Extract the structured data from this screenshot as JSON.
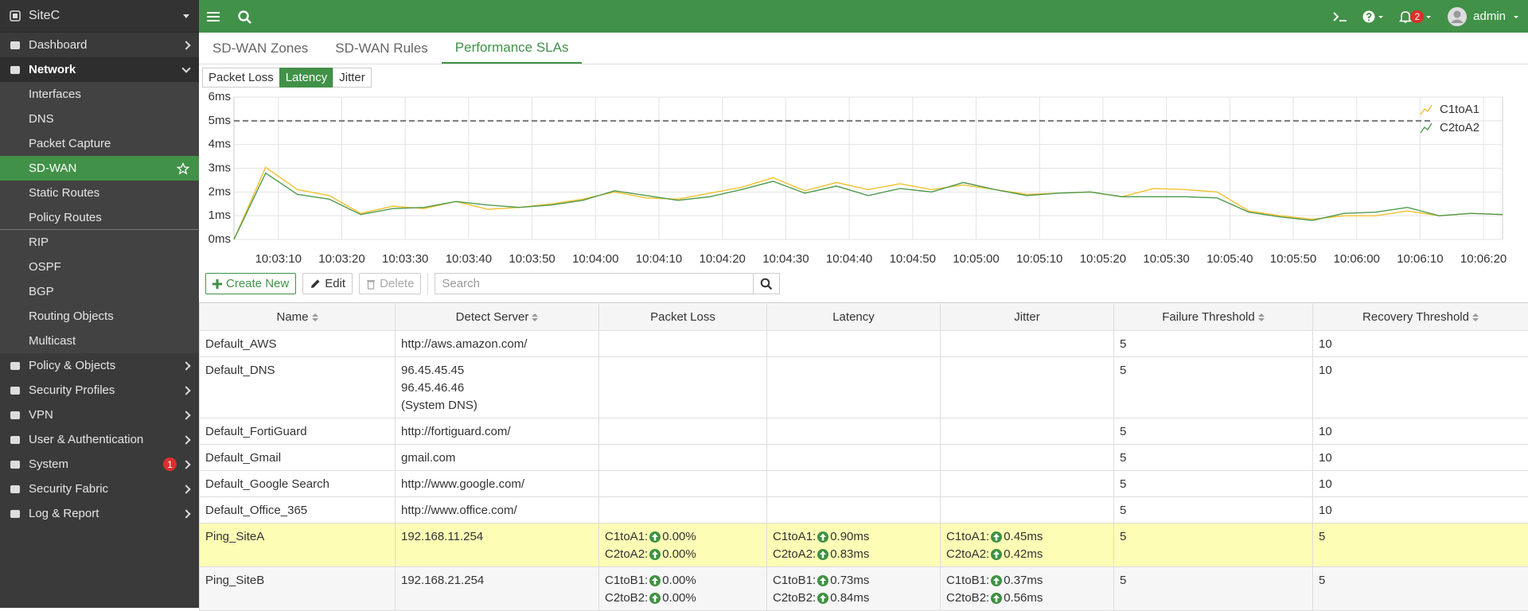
{
  "sidebar": {
    "site": "SiteC",
    "items": [
      {
        "label": "Dashboard",
        "level": 1
      },
      {
        "label": "Network",
        "level": 1,
        "expanded": true
      },
      {
        "label": "Interfaces",
        "level": 2
      },
      {
        "label": "DNS",
        "level": 2
      },
      {
        "label": "Packet Capture",
        "level": 2
      },
      {
        "label": "SD-WAN",
        "level": 2,
        "active": true
      },
      {
        "label": "Static Routes",
        "level": 2
      },
      {
        "label": "Policy Routes",
        "level": 2,
        "separator_after": true
      },
      {
        "label": "RIP",
        "level": 2
      },
      {
        "label": "OSPF",
        "level": 2
      },
      {
        "label": "BGP",
        "level": 2
      },
      {
        "label": "Routing Objects",
        "level": 2
      },
      {
        "label": "Multicast",
        "level": 2
      },
      {
        "label": "Policy & Objects",
        "level": 1
      },
      {
        "label": "Security Profiles",
        "level": 1
      },
      {
        "label": "VPN",
        "level": 1
      },
      {
        "label": "User & Authentication",
        "level": 1
      },
      {
        "label": "System",
        "level": 1,
        "badge": 1
      },
      {
        "label": "Security Fabric",
        "level": 1
      },
      {
        "label": "Log & Report",
        "level": 1
      }
    ]
  },
  "topbar": {
    "notifications": 2,
    "user": "admin"
  },
  "tabs": [
    "SD-WAN Zones",
    "SD-WAN Rules",
    "Performance SLAs"
  ],
  "active_tab": 2,
  "chart_buttons": [
    "Packet Loss",
    "Latency",
    "Jitter"
  ],
  "active_chart_button": 1,
  "chart_data": {
    "type": "line",
    "x": [
      "10:03:03",
      "10:03:08",
      "10:03:13",
      "10:03:18",
      "10:03:23",
      "10:03:28",
      "10:03:33",
      "10:03:38",
      "10:03:43",
      "10:03:48",
      "10:03:53",
      "10:03:58",
      "10:04:03",
      "10:04:08",
      "10:04:13",
      "10:04:18",
      "10:04:23",
      "10:04:28",
      "10:04:33",
      "10:04:38",
      "10:04:43",
      "10:04:48",
      "10:04:53",
      "10:04:58",
      "10:05:03",
      "10:05:08",
      "10:05:13",
      "10:05:18",
      "10:05:23",
      "10:05:28",
      "10:05:33",
      "10:05:38",
      "10:05:43",
      "10:05:48",
      "10:05:53",
      "10:05:58",
      "10:06:03",
      "10:06:08",
      "10:06:13",
      "10:06:18",
      "10:06:23"
    ],
    "xlim": [
      "10:03:03",
      "10:06:23"
    ],
    "xticks": [
      "10:03:10",
      "10:03:20",
      "10:03:30",
      "10:03:40",
      "10:03:50",
      "10:04:00",
      "10:04:10",
      "10:04:20",
      "10:04:30",
      "10:04:40",
      "10:04:50",
      "10:05:00",
      "10:05:10",
      "10:05:20",
      "10:05:30",
      "10:05:40",
      "10:05:50",
      "10:06:00",
      "10:06:10",
      "10:06:20"
    ],
    "ylim": [
      0,
      6
    ],
    "yticks": [
      {
        "value": 0,
        "label": "0ms"
      },
      {
        "value": 1,
        "label": "1ms"
      },
      {
        "value": 2,
        "label": "2ms"
      },
      {
        "value": 3,
        "label": "3ms"
      },
      {
        "value": 4,
        "label": "4ms"
      },
      {
        "value": 5,
        "label": "5ms"
      },
      {
        "value": 6,
        "label": "6ms"
      }
    ],
    "grid": true,
    "threshold": 5,
    "legend": "upper right",
    "series": [
      {
        "name": "C1toA1",
        "color": "#f2c02e",
        "values": [
          0,
          3.04,
          2.1,
          1.85,
          1.1,
          1.4,
          1.3,
          1.6,
          1.27,
          1.35,
          1.5,
          1.7,
          2.0,
          1.75,
          1.7,
          1.95,
          2.2,
          2.6,
          2.05,
          2.4,
          2.1,
          2.35,
          2.1,
          2.3,
          2.1,
          1.9,
          1.95,
          2.0,
          1.8,
          2.15,
          2.1,
          2.0,
          1.2,
          1.0,
          0.85,
          1.0,
          1.0,
          1.2,
          1.0,
          1.1,
          1.05
        ]
      },
      {
        "name": "C2toA2",
        "color": "#4f9a4f",
        "values": [
          0,
          2.8,
          1.9,
          1.7,
          1.05,
          1.3,
          1.35,
          1.6,
          1.45,
          1.35,
          1.45,
          1.65,
          2.05,
          1.85,
          1.65,
          1.8,
          2.1,
          2.45,
          1.95,
          2.25,
          1.85,
          2.15,
          2.0,
          2.4,
          2.1,
          1.85,
          1.95,
          2.0,
          1.8,
          1.8,
          1.8,
          1.75,
          1.15,
          0.95,
          0.8,
          1.1,
          1.15,
          1.35,
          1.0,
          1.1,
          1.05
        ]
      }
    ]
  },
  "toolbar": {
    "create": "Create New",
    "edit": "Edit",
    "delete": "Delete",
    "search_placeholder": "Search"
  },
  "table": {
    "columns": [
      {
        "label": "Name",
        "sortable": true
      },
      {
        "label": "Detect Server",
        "sortable": true
      },
      {
        "label": "Packet Loss"
      },
      {
        "label": "Latency"
      },
      {
        "label": "Jitter"
      },
      {
        "label": "Failure Threshold",
        "sortable": true
      },
      {
        "label": "Recovery Threshold",
        "sortable": true
      }
    ],
    "rows": [
      {
        "name": "Default_AWS",
        "detect": [
          "http://aws.amazon.com/"
        ],
        "failure": 5,
        "recovery": 10
      },
      {
        "name": "Default_DNS",
        "detect": [
          "96.45.45.45",
          "96.45.46.46",
          "(System DNS)"
        ],
        "failure": 5,
        "recovery": 10
      },
      {
        "name": "Default_FortiGuard",
        "detect": [
          "http://fortiguard.com/"
        ],
        "failure": 5,
        "recovery": 10
      },
      {
        "name": "Default_Gmail",
        "detect": [
          "gmail.com"
        ],
        "failure": 5,
        "recovery": 10
      },
      {
        "name": "Default_Google Search",
        "detect": [
          "http://www.google.com/"
        ],
        "failure": 5,
        "recovery": 10
      },
      {
        "name": "Default_Office_365",
        "detect": [
          "http://www.office.com/"
        ],
        "failure": 5,
        "recovery": 10
      },
      {
        "name": "Ping_SiteA",
        "detect": [
          "192.168.11.254"
        ],
        "highlight": true,
        "packet_loss": [
          {
            "link": "C1toA1:",
            "value": "0.00%"
          },
          {
            "link": "C2toA2:",
            "value": "0.00%"
          }
        ],
        "latency": [
          {
            "link": "C1toA1:",
            "value": "0.90ms"
          },
          {
            "link": "C2toA2:",
            "value": "0.83ms"
          }
        ],
        "jitter": [
          {
            "link": "C1toA1:",
            "value": "0.45ms"
          },
          {
            "link": "C2toA2:",
            "value": "0.42ms"
          }
        ],
        "failure": 5,
        "recovery": 5
      },
      {
        "name": "Ping_SiteB",
        "detect": [
          "192.168.21.254"
        ],
        "packet_loss": [
          {
            "link": "C1toB1:",
            "value": "0.00%"
          },
          {
            "link": "C2toB2:",
            "value": "0.00%"
          }
        ],
        "latency": [
          {
            "link": "C1toB1:",
            "value": "0.73ms"
          },
          {
            "link": "C2toB2:",
            "value": "0.84ms"
          }
        ],
        "jitter": [
          {
            "link": "C1toB1:",
            "value": "0.37ms"
          },
          {
            "link": "C2toB2:",
            "value": "0.56ms"
          }
        ],
        "failure": 5,
        "recovery": 5
      }
    ]
  }
}
